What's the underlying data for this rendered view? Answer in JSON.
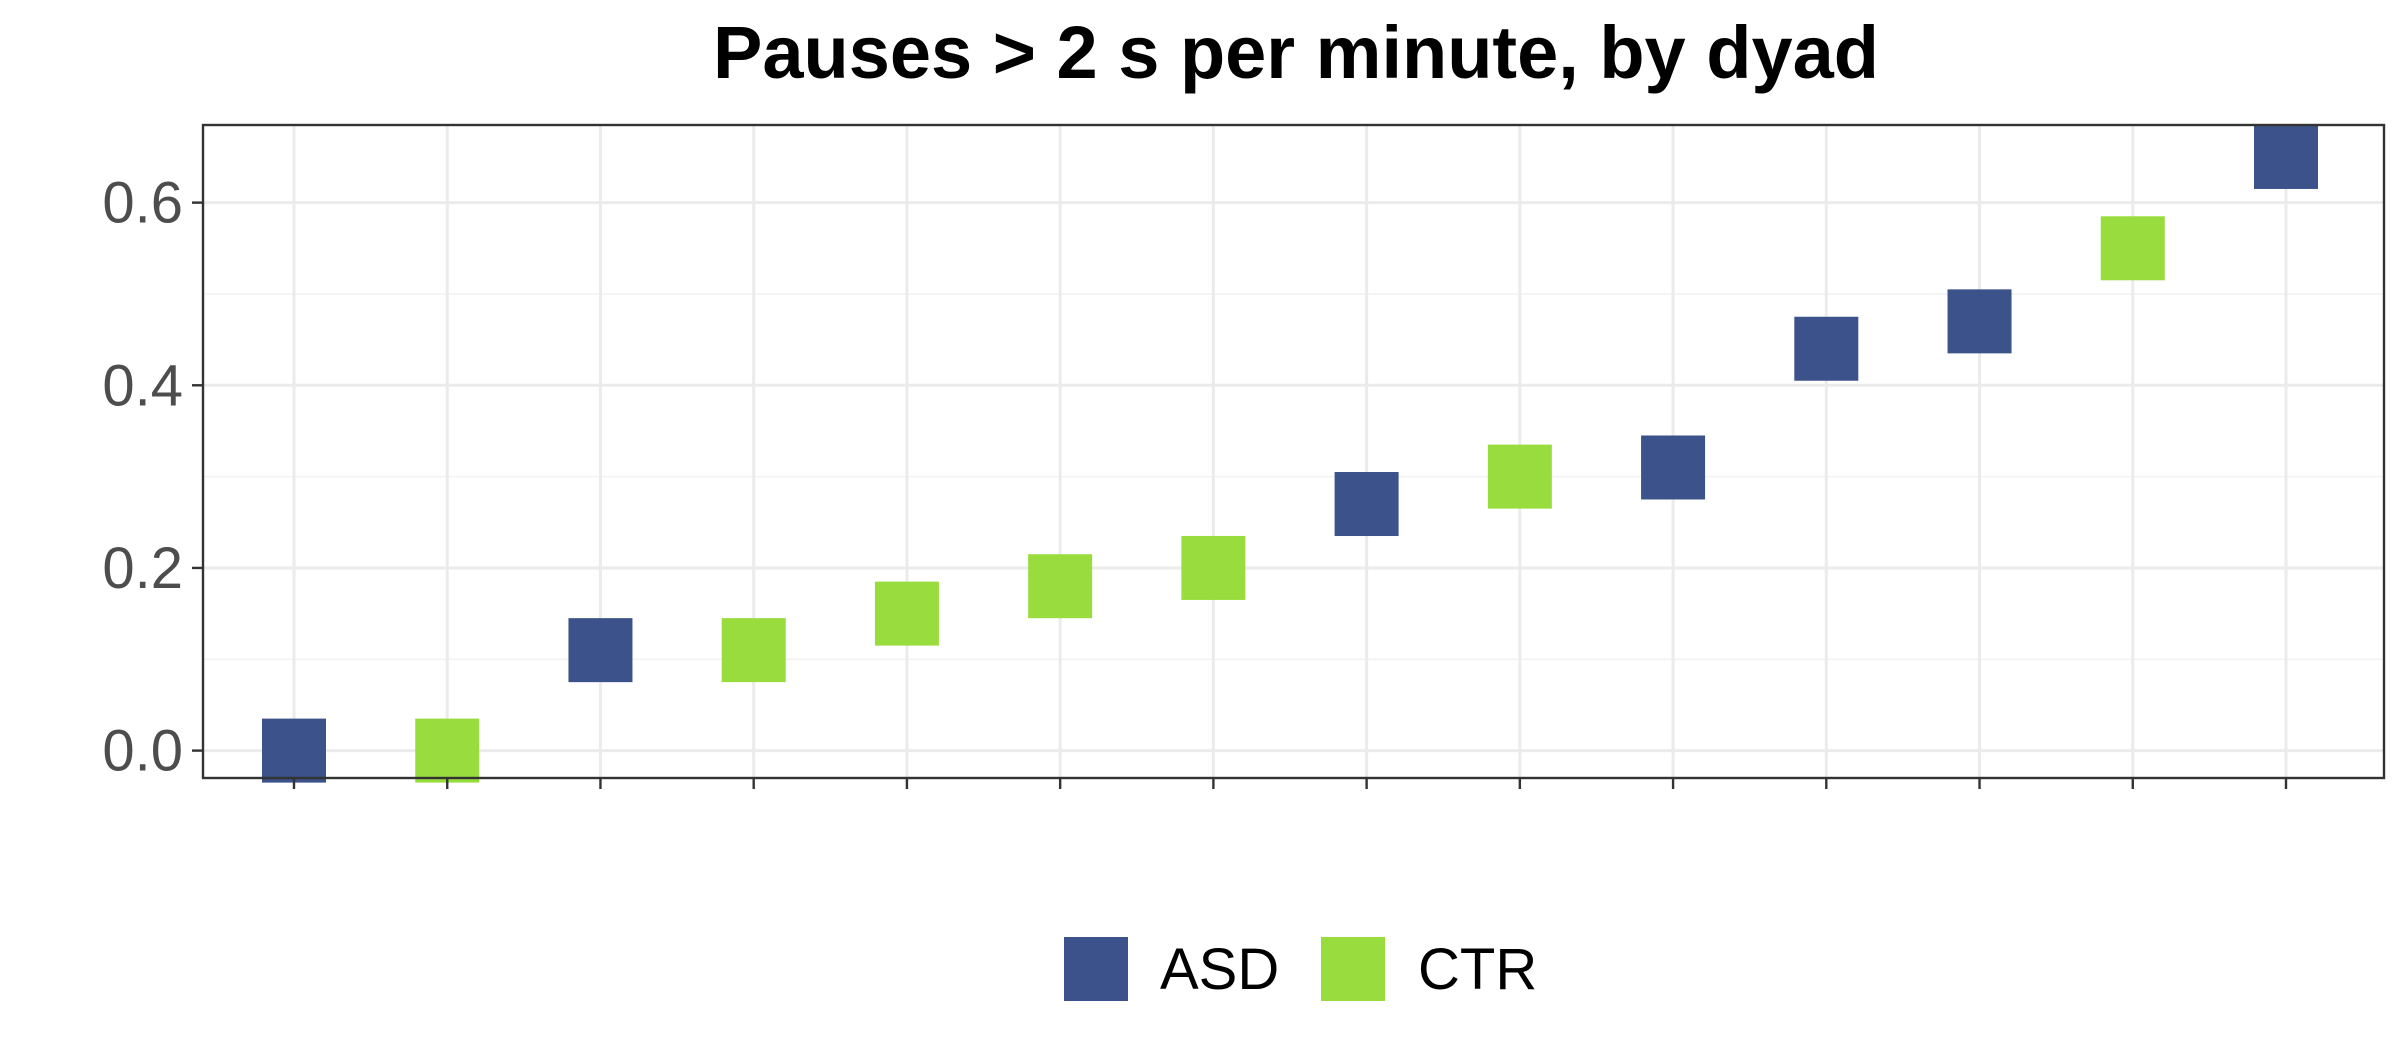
{
  "chart_data": {
    "type": "scatter",
    "title": "Pauses > 2 s per minute, by dyad",
    "xlabel": "",
    "ylabel": "",
    "ylim": [
      -0.03,
      0.685
    ],
    "yticks": [
      0.0,
      0.2,
      0.4,
      0.6
    ],
    "ytick_labels": [
      "0.0",
      "0.2",
      "0.4",
      "0.6"
    ],
    "grid": true,
    "legend_position": "bottom",
    "marker": "square",
    "series": [
      {
        "name": "ASD",
        "color": "#3b528b"
      },
      {
        "name": "CTR",
        "color": "#99dc3e"
      }
    ],
    "points": [
      {
        "x": 1,
        "y": 0.0,
        "group": "ASD"
      },
      {
        "x": 2,
        "y": 0.0,
        "group": "CTR"
      },
      {
        "x": 3,
        "y": 0.11,
        "group": "ASD"
      },
      {
        "x": 4,
        "y": 0.11,
        "group": "CTR"
      },
      {
        "x": 5,
        "y": 0.15,
        "group": "CTR"
      },
      {
        "x": 6,
        "y": 0.18,
        "group": "CTR"
      },
      {
        "x": 7,
        "y": 0.2,
        "group": "CTR"
      },
      {
        "x": 8,
        "y": 0.27,
        "group": "ASD"
      },
      {
        "x": 9,
        "y": 0.3,
        "group": "CTR"
      },
      {
        "x": 10,
        "y": 0.31,
        "group": "ASD"
      },
      {
        "x": 11,
        "y": 0.44,
        "group": "ASD"
      },
      {
        "x": 12,
        "y": 0.47,
        "group": "ASD"
      },
      {
        "x": 13,
        "y": 0.55,
        "group": "CTR"
      },
      {
        "x": 14,
        "y": 0.65,
        "group": "ASD"
      }
    ]
  }
}
